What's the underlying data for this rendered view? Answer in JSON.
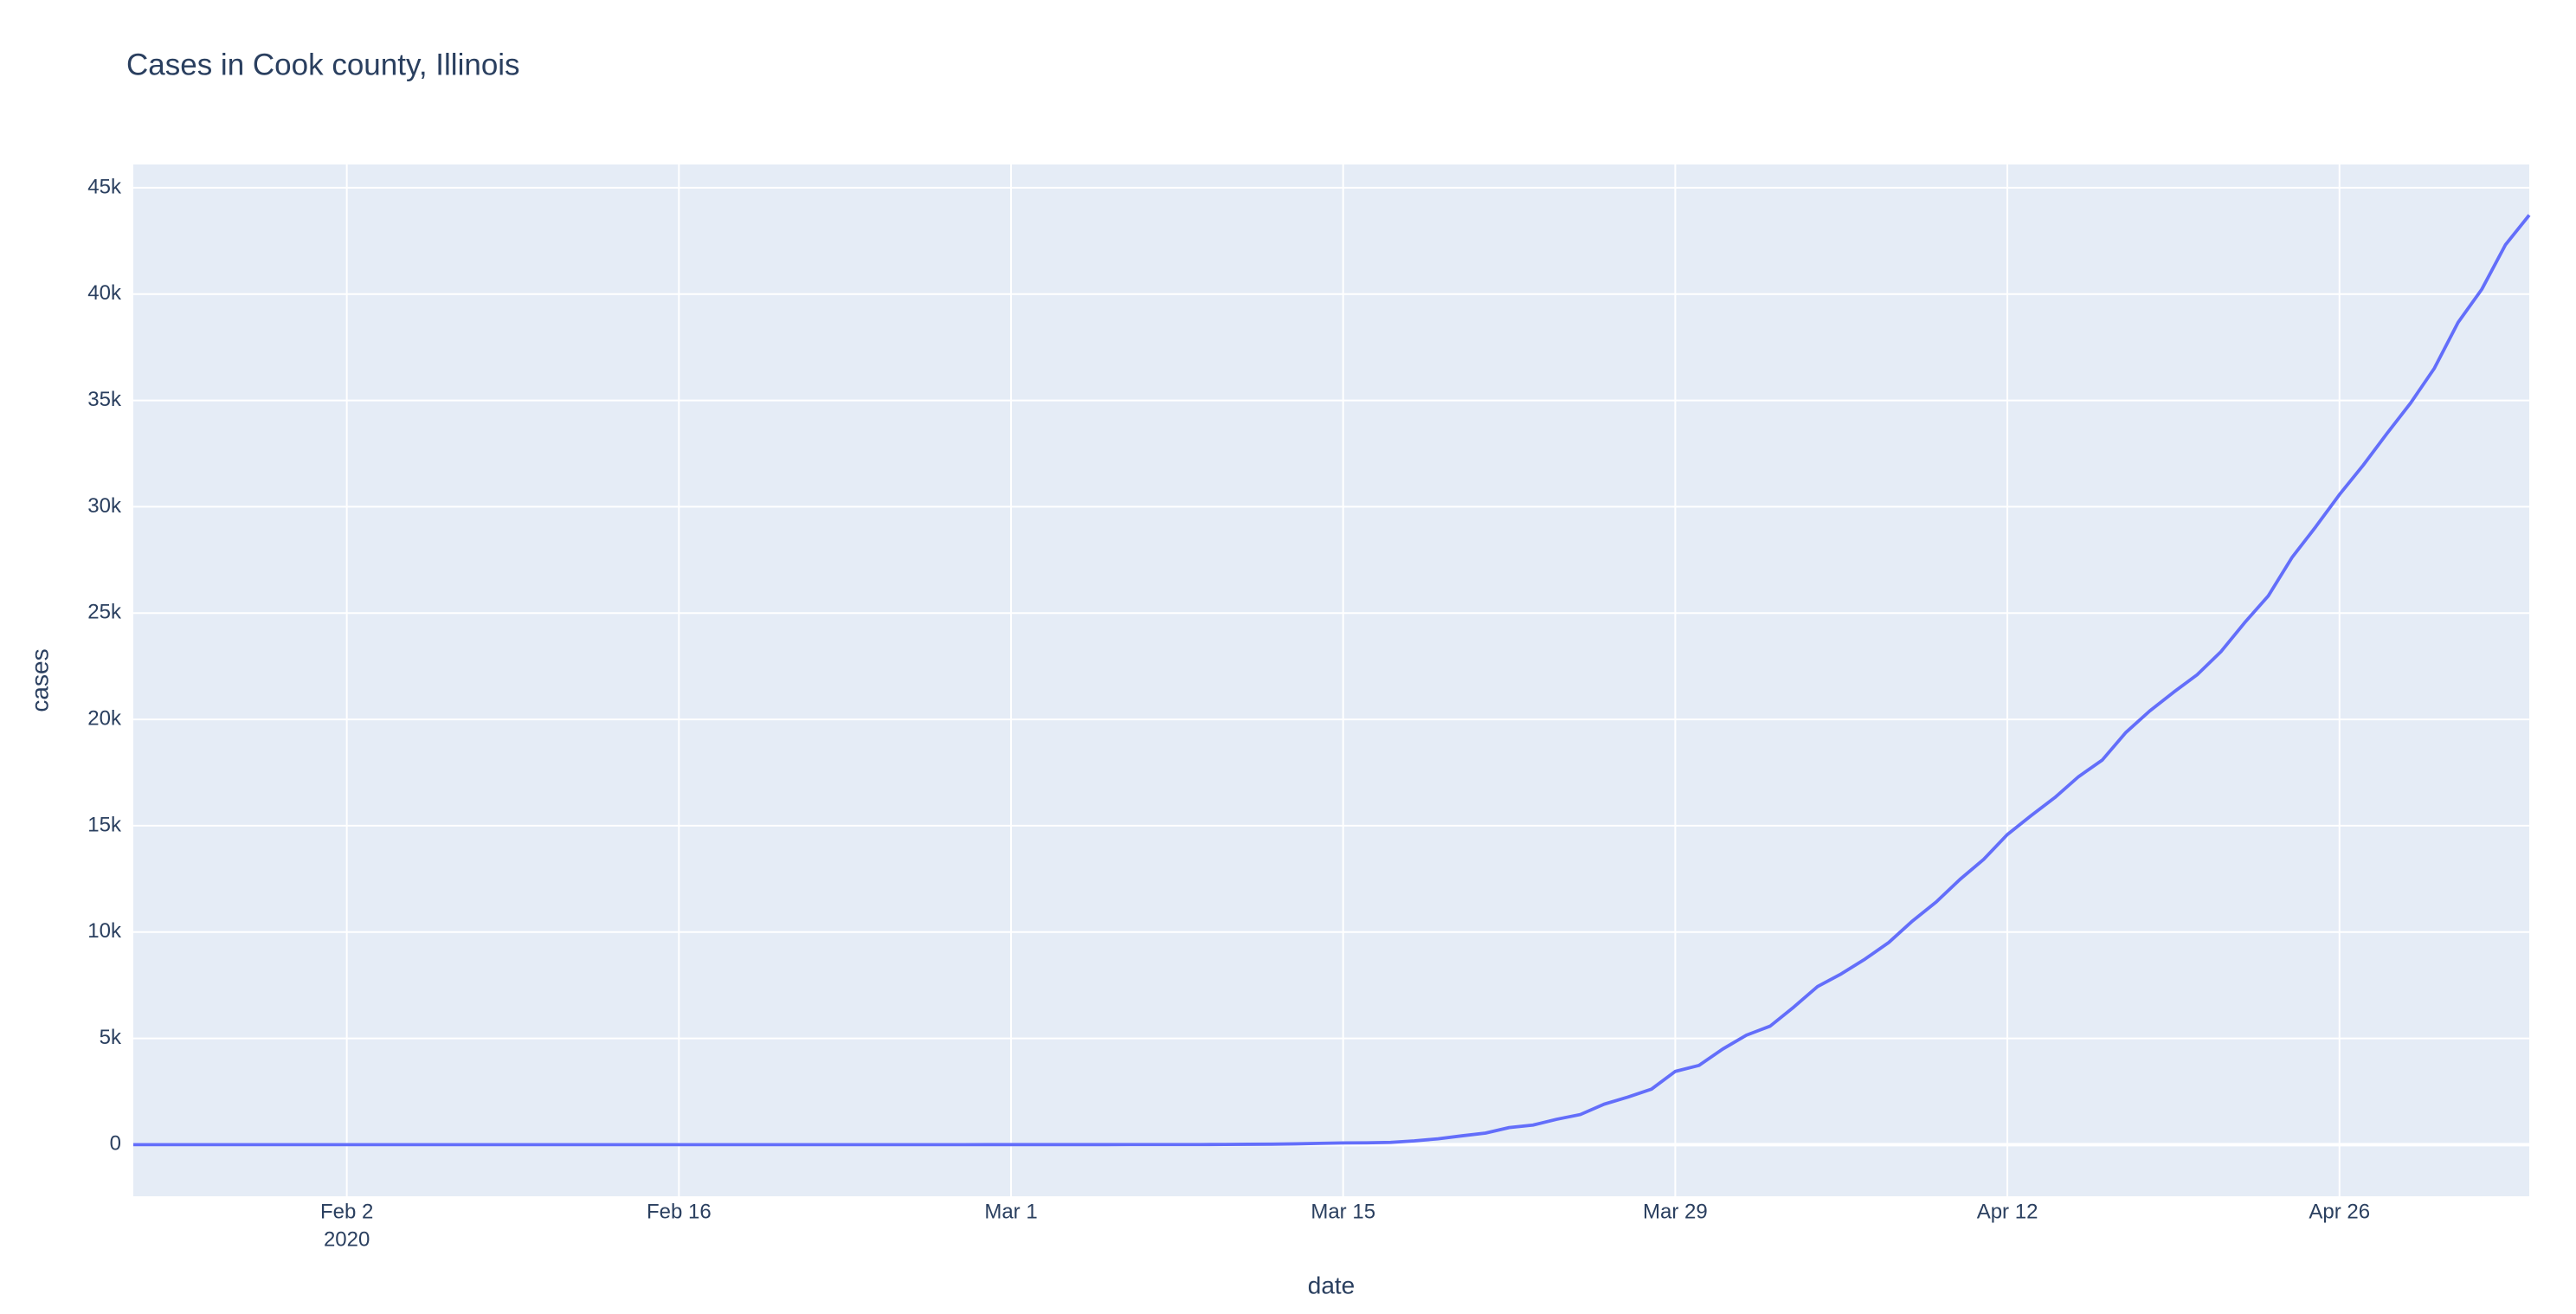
{
  "chart_data": {
    "type": "line",
    "title": "Cases in Cook county, Illinois",
    "x_label": "date",
    "y_label": "cases",
    "color": "#636efa",
    "grid": true,
    "x": [
      "2020-01-24",
      "2020-01-25",
      "2020-01-26",
      "2020-01-27",
      "2020-01-28",
      "2020-01-29",
      "2020-01-30",
      "2020-01-31",
      "2020-02-01",
      "2020-02-02",
      "2020-02-03",
      "2020-02-04",
      "2020-02-05",
      "2020-02-06",
      "2020-02-07",
      "2020-02-08",
      "2020-02-09",
      "2020-02-10",
      "2020-02-11",
      "2020-02-12",
      "2020-02-13",
      "2020-02-14",
      "2020-02-15",
      "2020-02-16",
      "2020-02-17",
      "2020-02-18",
      "2020-02-19",
      "2020-02-20",
      "2020-02-21",
      "2020-02-22",
      "2020-02-23",
      "2020-02-24",
      "2020-02-25",
      "2020-02-26",
      "2020-02-27",
      "2020-02-28",
      "2020-02-29",
      "2020-03-01",
      "2020-03-02",
      "2020-03-03",
      "2020-03-04",
      "2020-03-05",
      "2020-03-06",
      "2020-03-07",
      "2020-03-08",
      "2020-03-09",
      "2020-03-10",
      "2020-03-11",
      "2020-03-12",
      "2020-03-13",
      "2020-03-14",
      "2020-03-15",
      "2020-03-16",
      "2020-03-17",
      "2020-03-18",
      "2020-03-19",
      "2020-03-20",
      "2020-03-21",
      "2020-03-22",
      "2020-03-23",
      "2020-03-24",
      "2020-03-25",
      "2020-03-26",
      "2020-03-27",
      "2020-03-28",
      "2020-03-29",
      "2020-03-30",
      "2020-03-31",
      "2020-04-01",
      "2020-04-02",
      "2020-04-03",
      "2020-04-04",
      "2020-04-05",
      "2020-04-06",
      "2020-04-07",
      "2020-04-08",
      "2020-04-09",
      "2020-04-10",
      "2020-04-11",
      "2020-04-12",
      "2020-04-13",
      "2020-04-14",
      "2020-04-15",
      "2020-04-16",
      "2020-04-17",
      "2020-04-18",
      "2020-04-19",
      "2020-04-20",
      "2020-04-21",
      "2020-04-22",
      "2020-04-23",
      "2020-04-24",
      "2020-04-25",
      "2020-04-26",
      "2020-04-27",
      "2020-04-28",
      "2020-04-29",
      "2020-04-30",
      "2020-05-01",
      "2020-05-02",
      "2020-05-03",
      "2020-05-04"
    ],
    "values": [
      1,
      1,
      1,
      1,
      1,
      1,
      2,
      2,
      2,
      2,
      2,
      2,
      2,
      2,
      2,
      2,
      2,
      2,
      2,
      2,
      2,
      2,
      2,
      2,
      2,
      2,
      2,
      2,
      2,
      2,
      2,
      2,
      2,
      2,
      2,
      2,
      3,
      3,
      3,
      3,
      3,
      4,
      5,
      5,
      6,
      7,
      11,
      19,
      24,
      40,
      61,
      82,
      89,
      107,
      179,
      276,
      416,
      545,
      805,
      922,
      1194,
      1418,
      1904,
      2239,
      2613,
      3445,
      3727,
      4496,
      5152,
      5575,
      6474,
      7439,
      8034,
      8728,
      9509,
      10520,
      11415,
      12472,
      13417,
      14585,
      15474,
      16323,
      17306,
      18087,
      19391,
      20395,
      21272,
      22101,
      23181,
      24546,
      25811,
      27616,
      29058,
      30574,
      31953,
      33441,
      34880,
      36513,
      38668,
      40227,
      42324,
      43715
    ],
    "xlim": [
      "2020-01-24",
      "2020-05-04"
    ],
    "xticks": [
      {
        "value": "2020-02-02",
        "label": "Feb 2"
      },
      {
        "value": "2020-02-16",
        "label": "Feb 16"
      },
      {
        "value": "2020-03-01",
        "label": "Mar 1"
      },
      {
        "value": "2020-03-15",
        "label": "Mar 15"
      },
      {
        "value": "2020-03-29",
        "label": "Mar 29"
      },
      {
        "value": "2020-04-12",
        "label": "Apr 12"
      },
      {
        "value": "2020-04-26",
        "label": "Apr 26"
      }
    ],
    "x_year_label": "2020",
    "ylim": [
      -2426,
      46096
    ],
    "yticks": [
      0,
      {
        "value": 5000,
        "label": "5k"
      },
      {
        "value": 10000,
        "label": "10k"
      },
      {
        "value": 15000,
        "label": "15k"
      },
      {
        "value": 20000,
        "label": "20k"
      },
      {
        "value": 25000,
        "label": "25k"
      },
      {
        "value": 30000,
        "label": "30k"
      },
      {
        "value": 35000,
        "label": "35k"
      },
      {
        "value": 40000,
        "label": "40k"
      },
      {
        "value": 45000,
        "label": "45k"
      }
    ]
  }
}
